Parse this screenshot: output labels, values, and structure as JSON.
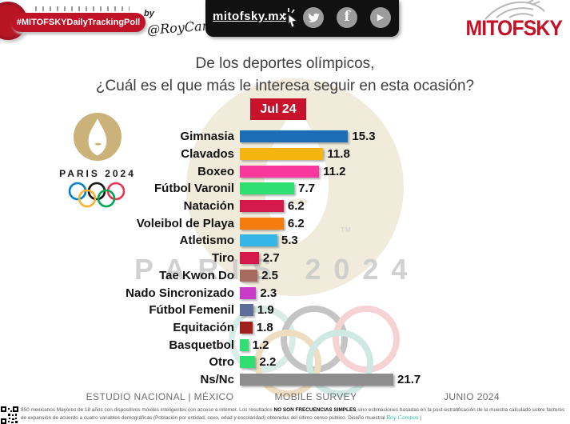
{
  "header": {
    "badge_label": "#MITOFSKYDailyTrackingPoll",
    "by_label": "by",
    "signature": "@RoyCampos",
    "site_link": "mitofsky.mx",
    "social_icons": [
      "twitter",
      "facebook",
      "youtube"
    ],
    "brand": "MITOFSKY",
    "brand_color": "#c31127"
  },
  "title": {
    "line1": "De los deportes olímpicos,",
    "line2": "¿Cuál es el que más le interesa seguir en esta ocasión?"
  },
  "date_badge": "Jul 24",
  "paris_logo": {
    "wordmark": "PARIS 2024"
  },
  "watermark": {
    "wordmark": "PARIS 2024",
    "tm": "TM"
  },
  "chart_data": {
    "type": "bar",
    "orientation": "horizontal",
    "title": "De los deportes olímpicos, ¿Cuál es el que más le interesa seguir en esta ocasión?",
    "period_label": "Jul 24",
    "unit": "%",
    "xlim": [
      0,
      22
    ],
    "grid": false,
    "categories": [
      "Gimnasia",
      "Clavados",
      "Boxeo",
      "Fútbol Varonil",
      "Natación",
      "Voleibol de Playa",
      "Atletismo",
      "Tiro",
      "Tae Kwon Do",
      "Nado Sincronizado",
      "Fútbol Femenil",
      "Equitación",
      "Basquetbol",
      "Otro",
      "Ns/Nc"
    ],
    "values": [
      15.3,
      11.8,
      11.2,
      7.7,
      6.2,
      6.2,
      5.3,
      2.7,
      2.5,
      2.3,
      1.9,
      1.8,
      1.2,
      2.2,
      21.7
    ],
    "colors": [
      "#1b6db5",
      "#f6b40e",
      "#f8389c",
      "#30df72",
      "#d6194b",
      "#f67c0c",
      "#35b6e9",
      "#d6194b",
      "#a56a60",
      "#c73bc7",
      "#5f6d9b",
      "#a02020",
      "#30df72",
      "#30df72",
      "#8d8d8d"
    ]
  },
  "footer": {
    "left": "ESTUDIO NACIONAL | MÉXICO",
    "center": "MOBILE SURVEY",
    "right": "JUNIO 2024"
  },
  "fine_print": {
    "part1": "850 mexicanos Mayores de 18 años con dispositivos móviles inteligentes con acceso a internet. Los resultados ",
    "bold": "NO SON FRECUENCIAS SIMPLES",
    "part2": " sino estimaciones basadas en la post-estratificación de la muestra calculado sobre factores de expansión de acuerdo a cuatro variables demográficas (Población por entidad, sexo, edad y escolaridad) obtenidas del último censo público. Diseño muestral ",
    "script": "Roy Campos",
    "end": " |"
  }
}
